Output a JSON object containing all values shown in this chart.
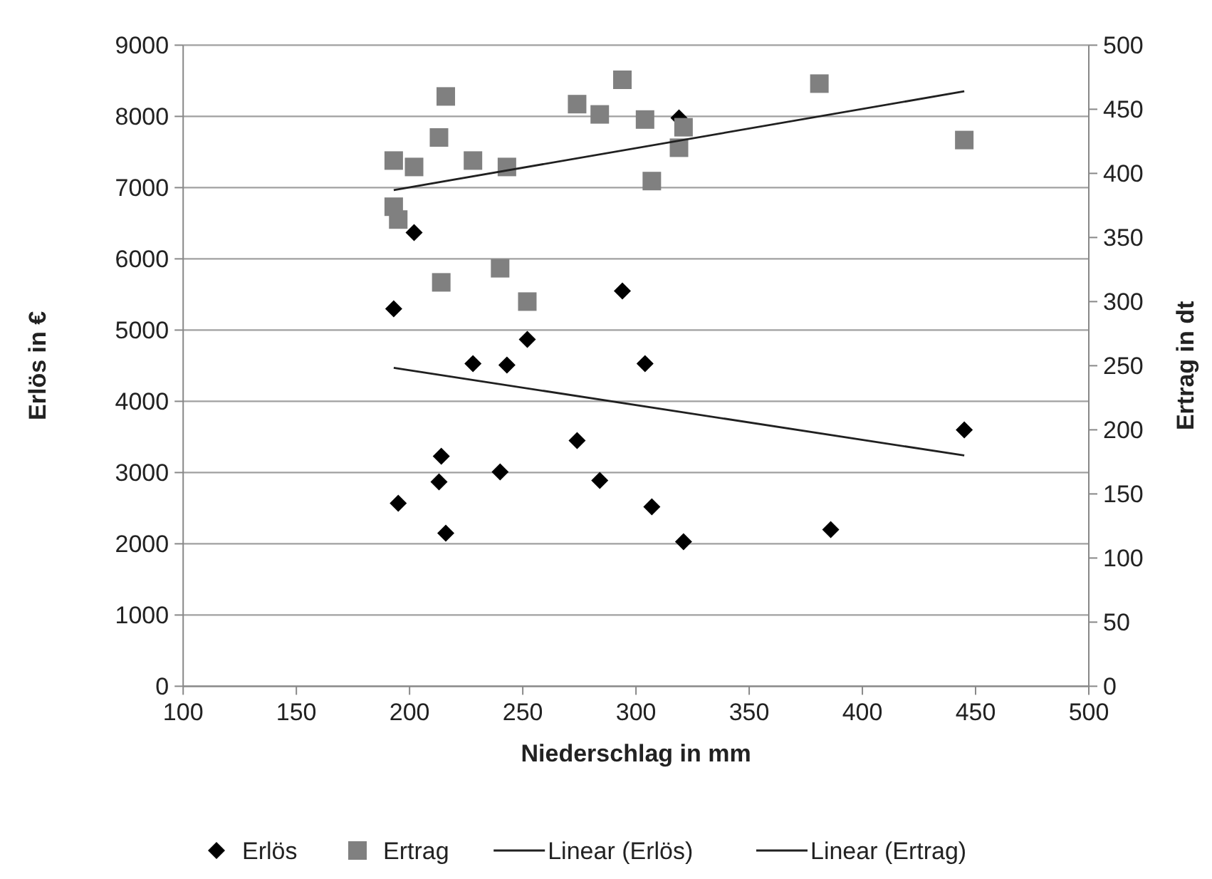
{
  "chart_data": {
    "type": "scatter",
    "xlabel": "Niederschlag in mm",
    "ylabel": "Erlös in €",
    "y2label": "Ertrag in dt",
    "xlim": [
      100,
      500
    ],
    "xticks": [
      100,
      150,
      200,
      250,
      300,
      350,
      400,
      450,
      500
    ],
    "ylim": [
      0,
      9000
    ],
    "yticks": [
      0,
      1000,
      2000,
      3000,
      4000,
      5000,
      6000,
      7000,
      8000,
      9000
    ],
    "y2lim": [
      0,
      500
    ],
    "y2ticks": [
      0,
      50,
      100,
      150,
      200,
      250,
      300,
      350,
      400,
      450,
      500
    ],
    "grid": "y",
    "legend": "bottom",
    "series": [
      {
        "name": "Erlös",
        "marker": "diamond",
        "color": "#000000",
        "x": [
          193,
          202,
          195,
          214,
          213,
          216,
          228,
          240,
          243,
          252,
          274,
          284,
          294,
          304,
          307,
          319,
          321,
          386,
          445
        ],
        "values": [
          5300,
          6370,
          2570,
          3230,
          2870,
          2150,
          4530,
          3010,
          4510,
          4870,
          3450,
          2890,
          5550,
          4530,
          2520,
          7980,
          2030,
          2200,
          3600
        ]
      },
      {
        "name": "Ertrag",
        "marker": "square",
        "axis": "y2",
        "color": "#808080",
        "x": [
          216,
          213,
          193,
          202,
          228,
          243,
          193,
          195,
          214,
          240,
          252,
          274,
          284,
          294,
          304,
          307,
          321,
          319,
          381,
          445
        ],
        "values": [
          460,
          428,
          410,
          405,
          410,
          405,
          374,
          364,
          315,
          326,
          300,
          454,
          446,
          473,
          442,
          394,
          436,
          420,
          470,
          426
        ]
      },
      {
        "name": "Linear (Erlös)",
        "type": "line",
        "marker": "none",
        "color": "#202020",
        "x": [
          193,
          445
        ],
        "values": [
          4470,
          3240
        ]
      },
      {
        "name": "Linear (Ertrag)",
        "type": "line",
        "marker": "none",
        "axis": "y2",
        "color": "#202020",
        "x": [
          193,
          445
        ],
        "values": [
          387,
          464
        ]
      }
    ]
  }
}
